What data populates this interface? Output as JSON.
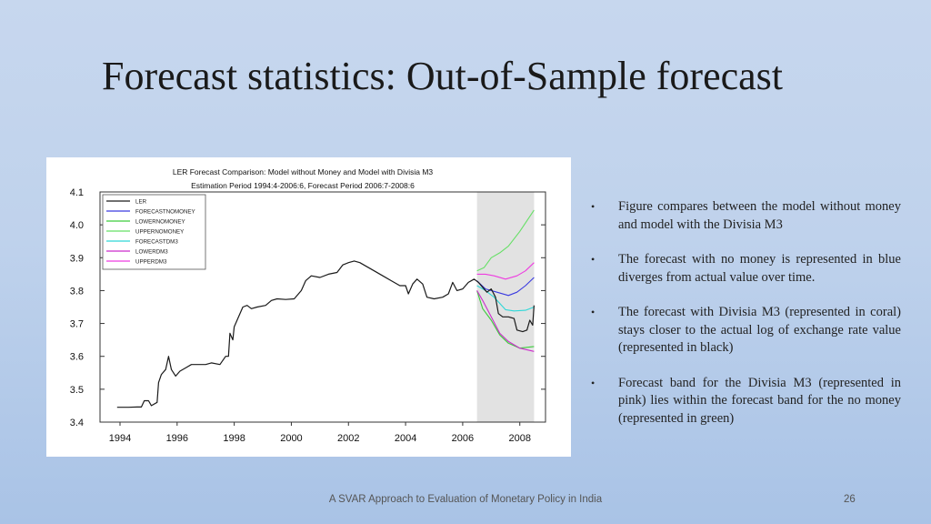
{
  "slide": {
    "title": "Forecast statistics: Out-of-Sample forecast",
    "footer": "A SVAR Approach to Evaluation of Monetary Policy in India",
    "page_number": "26"
  },
  "bullets": [
    "Figure compares between the model without money and model with the Divisia M3",
    "The forecast with no money is represented in blue diverges from actual value over time.",
    "The forecast with Divisia M3 (represented in coral) stays closer to the actual log of exchange rate value (represented in black)",
    "Forecast band for the Divisia M3 (represented in pink) lies within the forecast band for the no money (represented in green)"
  ],
  "chart_data": {
    "type": "line",
    "title": "LER Forecast Comparison: Model without Money and Model with Divisia M3",
    "subtitle": "Estimation Period 1994:4-2006:6, Forecast Period 2006:7-2008:6",
    "xlabel": "",
    "ylabel": "",
    "xlim": [
      1993.3,
      2008.9
    ],
    "ylim": [
      3.4,
      4.1
    ],
    "x_ticks": [
      "1994",
      "1996",
      "1998",
      "2000",
      "2002",
      "2004",
      "2006",
      "2008"
    ],
    "y_ticks": [
      "3.4",
      "3.5",
      "3.6",
      "3.7",
      "3.8",
      "3.9",
      "4.0",
      "4.1"
    ],
    "shaded_region": [
      2006.5,
      2008.5
    ],
    "grid": false,
    "legend_position": "top-left",
    "series": [
      {
        "name": "LER",
        "color": "#1a1a1a",
        "points": [
          [
            1993.9,
            3.445
          ],
          [
            1994.3,
            3.445
          ],
          [
            1994.6,
            3.446
          ],
          [
            1994.75,
            3.446
          ],
          [
            1994.85,
            3.465
          ],
          [
            1995.0,
            3.465
          ],
          [
            1995.1,
            3.45
          ],
          [
            1995.3,
            3.46
          ],
          [
            1995.35,
            3.52
          ],
          [
            1995.45,
            3.545
          ],
          [
            1995.6,
            3.56
          ],
          [
            1995.7,
            3.6
          ],
          [
            1995.8,
            3.56
          ],
          [
            1995.95,
            3.54
          ],
          [
            1996.1,
            3.555
          ],
          [
            1996.3,
            3.565
          ],
          [
            1996.5,
            3.575
          ],
          [
            1996.8,
            3.575
          ],
          [
            1997.0,
            3.575
          ],
          [
            1997.2,
            3.58
          ],
          [
            1997.5,
            3.575
          ],
          [
            1997.7,
            3.6
          ],
          [
            1997.8,
            3.6
          ],
          [
            1997.85,
            3.67
          ],
          [
            1997.95,
            3.65
          ],
          [
            1998.0,
            3.69
          ],
          [
            1998.3,
            3.75
          ],
          [
            1998.45,
            3.755
          ],
          [
            1998.6,
            3.745
          ],
          [
            1998.8,
            3.75
          ],
          [
            1999.1,
            3.755
          ],
          [
            1999.3,
            3.77
          ],
          [
            1999.5,
            3.775
          ],
          [
            1999.8,
            3.773
          ],
          [
            2000.1,
            3.775
          ],
          [
            2000.35,
            3.8
          ],
          [
            2000.5,
            3.83
          ],
          [
            2000.7,
            3.845
          ],
          [
            2001.0,
            3.84
          ],
          [
            2001.3,
            3.85
          ],
          [
            2001.6,
            3.855
          ],
          [
            2001.8,
            3.878
          ],
          [
            2002.0,
            3.885
          ],
          [
            2002.2,
            3.89
          ],
          [
            2002.4,
            3.885
          ],
          [
            2002.6,
            3.875
          ],
          [
            2002.9,
            3.86
          ],
          [
            2003.2,
            3.845
          ],
          [
            2003.5,
            3.83
          ],
          [
            2003.8,
            3.815
          ],
          [
            2004.0,
            3.815
          ],
          [
            2004.1,
            3.79
          ],
          [
            2004.25,
            3.82
          ],
          [
            2004.4,
            3.835
          ],
          [
            2004.6,
            3.82
          ],
          [
            2004.75,
            3.78
          ],
          [
            2005.0,
            3.775
          ],
          [
            2005.3,
            3.78
          ],
          [
            2005.5,
            3.79
          ],
          [
            2005.65,
            3.825
          ],
          [
            2005.8,
            3.8
          ],
          [
            2006.0,
            3.805
          ],
          [
            2006.2,
            3.825
          ],
          [
            2006.4,
            3.835
          ],
          [
            2006.55,
            3.825
          ],
          [
            2006.7,
            3.81
          ],
          [
            2006.85,
            3.795
          ],
          [
            2007.0,
            3.805
          ],
          [
            2007.15,
            3.78
          ],
          [
            2007.25,
            3.73
          ],
          [
            2007.4,
            3.72
          ],
          [
            2007.6,
            3.72
          ],
          [
            2007.8,
            3.715
          ],
          [
            2007.9,
            3.68
          ],
          [
            2008.1,
            3.675
          ],
          [
            2008.25,
            3.68
          ],
          [
            2008.35,
            3.71
          ],
          [
            2008.45,
            3.695
          ],
          [
            2008.5,
            3.755
          ]
        ]
      },
      {
        "name": "FORECASTNOMONEY",
        "color": "#3a3ae0",
        "points": [
          [
            2006.5,
            3.83
          ],
          [
            2006.8,
            3.805
          ],
          [
            2007.2,
            3.795
          ],
          [
            2007.6,
            3.785
          ],
          [
            2007.9,
            3.795
          ],
          [
            2008.2,
            3.815
          ],
          [
            2008.5,
            3.84
          ]
        ]
      },
      {
        "name": "LOWERNOMONEY",
        "color": "#3ccc3c",
        "points": [
          [
            2006.5,
            3.8
          ],
          [
            2006.7,
            3.745
          ],
          [
            2007.0,
            3.71
          ],
          [
            2007.3,
            3.665
          ],
          [
            2007.6,
            3.64
          ],
          [
            2008.0,
            3.625
          ],
          [
            2008.5,
            3.63
          ]
        ]
      },
      {
        "name": "UPPERNOMONEY",
        "color": "#66e066",
        "points": [
          [
            2006.5,
            3.86
          ],
          [
            2006.75,
            3.87
          ],
          [
            2007.0,
            3.9
          ],
          [
            2007.3,
            3.915
          ],
          [
            2007.6,
            3.935
          ],
          [
            2008.0,
            3.98
          ],
          [
            2008.5,
            4.045
          ]
        ]
      },
      {
        "name": "FORECASTDM3",
        "color": "#2ed8d8",
        "points": [
          [
            2006.5,
            3.815
          ],
          [
            2006.8,
            3.8
          ],
          [
            2007.1,
            3.78
          ],
          [
            2007.5,
            3.742
          ],
          [
            2007.8,
            3.738
          ],
          [
            2008.2,
            3.74
          ],
          [
            2008.5,
            3.75
          ]
        ]
      },
      {
        "name": "LOWERDM3",
        "color": "#cc2ccc",
        "points": [
          [
            2006.5,
            3.8
          ],
          [
            2006.7,
            3.77
          ],
          [
            2007.0,
            3.72
          ],
          [
            2007.3,
            3.67
          ],
          [
            2007.6,
            3.645
          ],
          [
            2008.0,
            3.625
          ],
          [
            2008.5,
            3.615
          ]
        ]
      },
      {
        "name": "UPPERDM3",
        "color": "#ee3ce0",
        "points": [
          [
            2006.5,
            3.85
          ],
          [
            2006.8,
            3.85
          ],
          [
            2007.1,
            3.845
          ],
          [
            2007.5,
            3.835
          ],
          [
            2007.9,
            3.845
          ],
          [
            2008.2,
            3.86
          ],
          [
            2008.5,
            3.885
          ]
        ]
      }
    ]
  }
}
